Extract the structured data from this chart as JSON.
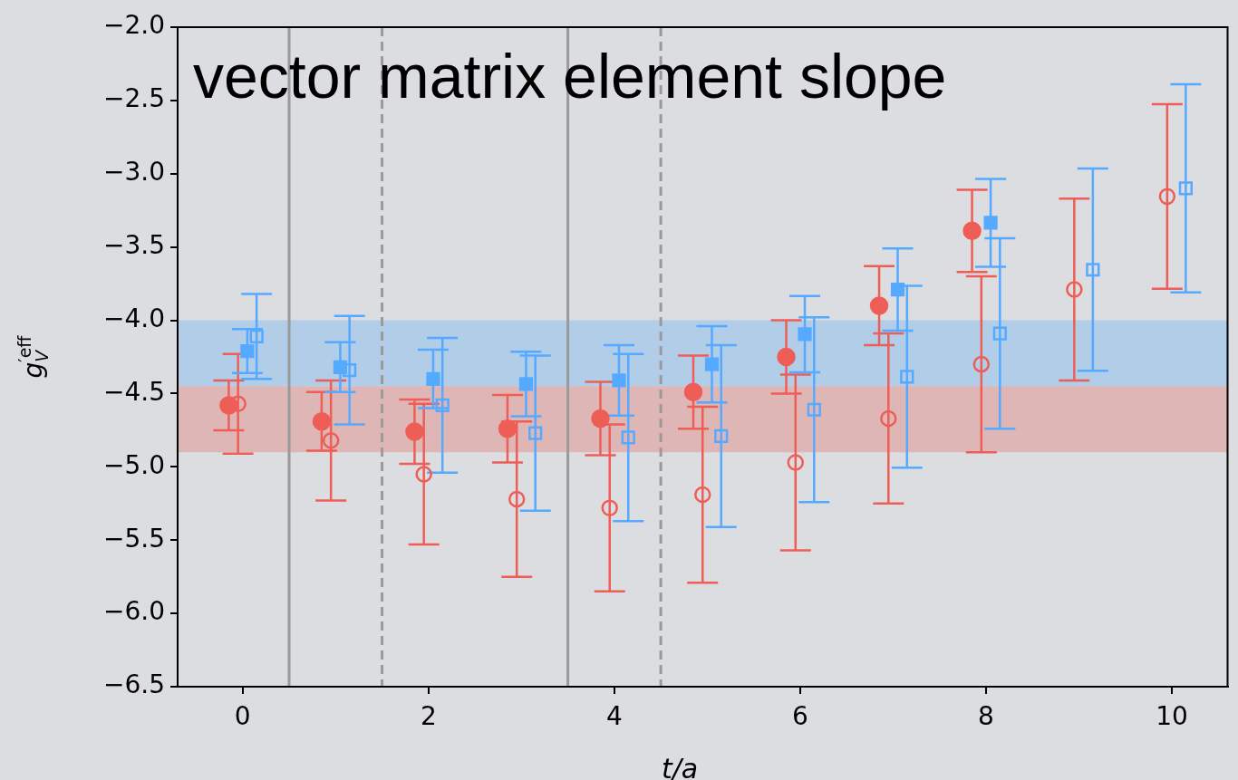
{
  "chart_data": {
    "type": "scatter",
    "title": "vector matrix element slope",
    "xlabel": "t/a",
    "ylabel": "g$_{V}$$^{′eff}$",
    "xlim": [
      -0.7,
      10.6
    ],
    "xticks": [
      0,
      2,
      4,
      6,
      8,
      10
    ],
    "ylim": [
      -6.5,
      -2.0
    ],
    "yticks": [
      {
        "value": -6.5,
        "label": "−6.5"
      },
      {
        "value": -6.0,
        "label": "−6.0"
      },
      {
        "value": -5.5,
        "label": "−5.5"
      },
      {
        "value": -5.0,
        "label": "−5.0"
      },
      {
        "value": -4.5,
        "label": "−4.5"
      },
      {
        "value": -4.0,
        "label": "−4.0"
      },
      {
        "value": -3.5,
        "label": "−3.5"
      },
      {
        "value": -3.0,
        "label": "−3.0"
      },
      {
        "value": -2.5,
        "label": "−2.5"
      },
      {
        "value": -2.0,
        "label": "−2.0"
      }
    ],
    "grid": false,
    "legend": false,
    "series": [
      {
        "color": "#ee5e57",
        "marker": "circle",
        "x": [
          -0.15,
          0.85,
          1.85,
          2.85,
          3.85,
          4.85,
          5.85,
          6.85,
          7.85
        ],
        "values": [
          -4.58,
          -4.69,
          -4.76,
          -4.74,
          -4.67,
          -4.49,
          -4.25,
          -3.9,
          -3.39
        ],
        "errors": [
          0.17,
          0.2,
          0.22,
          0.23,
          0.25,
          0.25,
          0.25,
          0.27,
          0.28
        ]
      },
      {
        "color": "#ee5e57",
        "marker": "circle",
        "x": [
          -0.05,
          0.95,
          1.95,
          2.95,
          3.95,
          4.95,
          5.95,
          6.95,
          7.95,
          8.95,
          9.95
        ],
        "values": [
          -4.57,
          -4.82,
          -5.05,
          -5.22,
          -5.28,
          -5.19,
          -4.97,
          -4.67,
          -4.3,
          -3.79,
          -3.155
        ],
        "errors": [
          0.34,
          0.41,
          0.48,
          0.53,
          0.57,
          0.6,
          0.6,
          0.58,
          0.6,
          0.62,
          0.63
        ]
      },
      {
        "color": "#55aaff",
        "marker": "square",
        "x": [
          0.05,
          1.05,
          2.05,
          3.05,
          4.05,
          5.05,
          6.05,
          7.05,
          8.05
        ],
        "values": [
          -4.21,
          -4.32,
          -4.4,
          -4.435,
          -4.41,
          -4.3,
          -4.095,
          -3.79,
          -3.335
        ],
        "errors": [
          0.15,
          0.17,
          0.2,
          0.22,
          0.24,
          0.26,
          0.26,
          0.28,
          0.3
        ]
      },
      {
        "color": "#55aaff",
        "marker": "square",
        "x": [
          0.15,
          1.15,
          2.15,
          3.15,
          4.15,
          5.15,
          6.15,
          7.15,
          8.15,
          9.15,
          10.15
        ],
        "values": [
          -4.11,
          -4.34,
          -4.58,
          -4.77,
          -4.8,
          -4.79,
          -4.61,
          -4.385,
          -4.09,
          -3.655,
          -3.1
        ],
        "errors": [
          0.29,
          0.37,
          0.46,
          0.53,
          0.57,
          0.62,
          0.63,
          0.62,
          0.65,
          0.69,
          0.71
        ]
      }
    ],
    "bands": [
      {
        "axis": "y",
        "from": -4.45,
        "to": -4.0,
        "color": "#b1cde8"
      },
      {
        "axis": "y",
        "from": -4.9,
        "to": -4.45,
        "color": "#dfb6b6"
      }
    ],
    "ref_lines": [
      {
        "axis": "x",
        "value": 0.5,
        "color": "#9a9a9a",
        "line_style": "solid"
      },
      {
        "axis": "x",
        "value": 1.5,
        "color": "#9a9a9a",
        "line_style": "dashed"
      },
      {
        "axis": "x",
        "value": 3.5,
        "color": "#9a9a9a",
        "line_style": "solid"
      },
      {
        "axis": "x",
        "value": 4.5,
        "color": "#9a9a9a",
        "line_style": "dashed"
      }
    ]
  }
}
